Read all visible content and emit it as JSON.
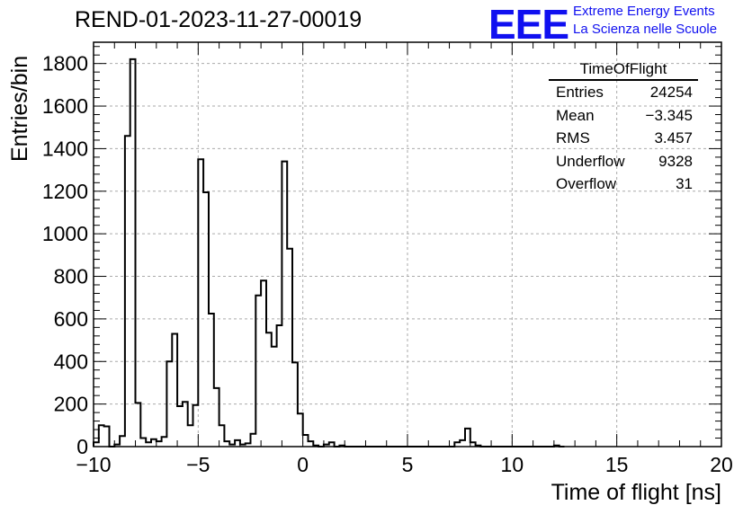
{
  "chart_data": {
    "type": "bar",
    "title": "REND-01-2023-11-27-00019",
    "xlabel": "Time of flight [ns]",
    "ylabel": "Entries/bin",
    "xlim": [
      -10,
      20
    ],
    "ylim": [
      0,
      1900
    ],
    "bin_width": 0.25,
    "x_ticks": [
      "−10",
      "−5",
      "0",
      "5",
      "10",
      "15",
      "20"
    ],
    "y_ticks": [
      "0",
      "200",
      "400",
      "600",
      "800",
      "1000",
      "1200",
      "1400",
      "1600",
      "1800"
    ],
    "grid": true,
    "bins_start": -10,
    "values": [
      20,
      100,
      95,
      0,
      10,
      50,
      1460,
      1820,
      205,
      40,
      20,
      35,
      25,
      45,
      400,
      530,
      190,
      210,
      100,
      195,
      1350,
      1195,
      625,
      275,
      100,
      25,
      10,
      30,
      10,
      15,
      60,
      710,
      780,
      535,
      470,
      570,
      1340,
      930,
      395,
      155,
      55,
      25,
      5,
      0,
      10,
      20,
      0,
      5,
      0,
      0,
      0,
      0,
      0,
      0,
      0,
      0,
      0,
      0,
      0,
      0,
      0,
      0,
      0,
      0,
      0,
      0,
      0,
      0,
      0,
      20,
      30,
      85,
      20,
      5,
      0,
      0,
      0,
      0,
      0,
      0,
      0,
      0,
      0,
      0,
      0,
      0,
      0,
      0,
      5,
      0
    ]
  },
  "stats": {
    "title": "TimeOfFlight",
    "rows": [
      {
        "label": "Entries",
        "value": "24254"
      },
      {
        "label": "Mean",
        "value": "−3.345"
      },
      {
        "label": "RMS",
        "value": "3.457"
      },
      {
        "label": "Underflow",
        "value": "9328"
      },
      {
        "label": "Overflow",
        "value": "31"
      }
    ]
  },
  "logo": {
    "text": "EEE",
    "line1": "Extreme Energy Events",
    "line2": "La Scienza nelle Scuole",
    "color": "#1010f0"
  }
}
